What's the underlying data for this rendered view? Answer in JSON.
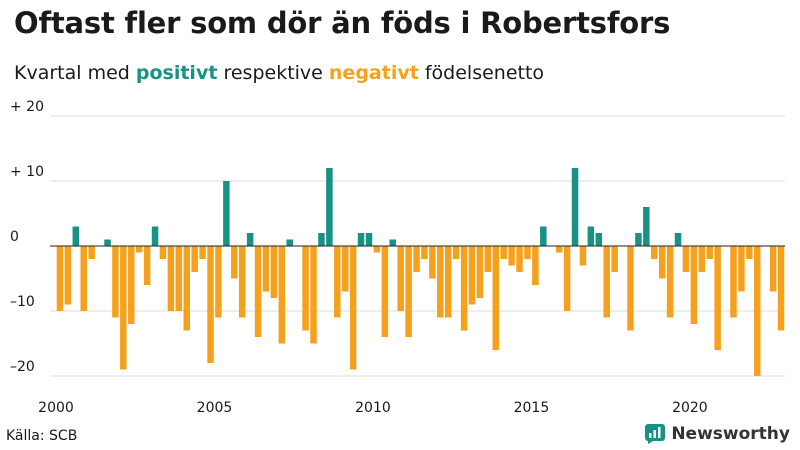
{
  "header": {
    "title": "Oftast fler som dör än föds i Robertsfors",
    "subtitle_part1": "Kvartal med ",
    "subtitle_pos": "positivt",
    "subtitle_part2": " respektive ",
    "subtitle_neg": "negativt",
    "subtitle_part3": " födelsenetto"
  },
  "footer": {
    "source": "Källa: SCB",
    "brand": "Newsworthy",
    "brand_icon": "newsworthy-logo-icon"
  },
  "colors": {
    "positive": "#1a9185",
    "negative": "#f5a11d",
    "grid": "#dddddd",
    "zero_line": "#222222"
  },
  "chart_data": {
    "type": "bar",
    "title": "Oftast fler som dör än föds i Robertsfors",
    "subtitle": "Kvartal med positivt respektive negativt födelsenetto",
    "xlabel": "",
    "ylabel": "",
    "ylim": [
      -20,
      20
    ],
    "yticks": [
      20,
      10,
      0,
      -10,
      -20
    ],
    "ytick_labels": [
      "+ 20",
      "+ 10",
      "0",
      "–10",
      "–20"
    ],
    "xticks": [
      "2000",
      "2005",
      "2010",
      "2015",
      "2020"
    ],
    "grid": true,
    "start_year": 2000,
    "quarters_per_year": 4,
    "values": [
      -10,
      -9,
      3,
      -10,
      -2,
      0,
      1,
      -11,
      -19,
      -12,
      -1,
      -6,
      3,
      -2,
      -10,
      -10,
      -13,
      -4,
      -2,
      -18,
      -11,
      10,
      -5,
      -11,
      2,
      -14,
      -7,
      -8,
      -15,
      1,
      0,
      -13,
      -15,
      2,
      12,
      -11,
      -7,
      -19,
      2,
      2,
      -1,
      -14,
      1,
      -10,
      -14,
      -4,
      -2,
      -5,
      -11,
      -11,
      -2,
      -13,
      -9,
      -8,
      -4,
      -16,
      -2,
      -3,
      -4,
      -2,
      -6,
      3,
      0,
      -1,
      -10,
      12,
      -3,
      3,
      2,
      -11,
      -4,
      0,
      -13,
      2,
      6,
      -2,
      -5,
      -11,
      2,
      -4,
      -12,
      -4,
      -2,
      -16,
      0,
      -11,
      -7,
      -2,
      -20,
      0,
      -7,
      -13
    ]
  }
}
